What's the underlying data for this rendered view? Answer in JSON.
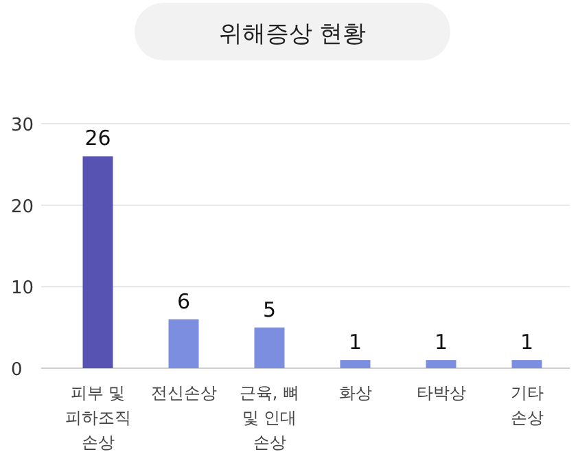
{
  "chart_data": {
    "type": "bar",
    "title": "위해증상 현황",
    "categories": [
      "피부 및\n피하조직\n손상",
      "전신손상",
      "근육, 뼈\n및 인대\n손상",
      "화상",
      "타박상",
      "기타\n손상"
    ],
    "values": [
      26,
      6,
      5,
      1,
      1,
      1
    ],
    "colors": [
      "#5753b3",
      "#7b8ee0",
      "#7b8ee0",
      "#7b8ee0",
      "#7b8ee0",
      "#7b8ee0"
    ],
    "ylim": [
      0,
      30
    ],
    "yticks": [
      0,
      10,
      20,
      30
    ],
    "grid": "y",
    "data_labels": true
  }
}
